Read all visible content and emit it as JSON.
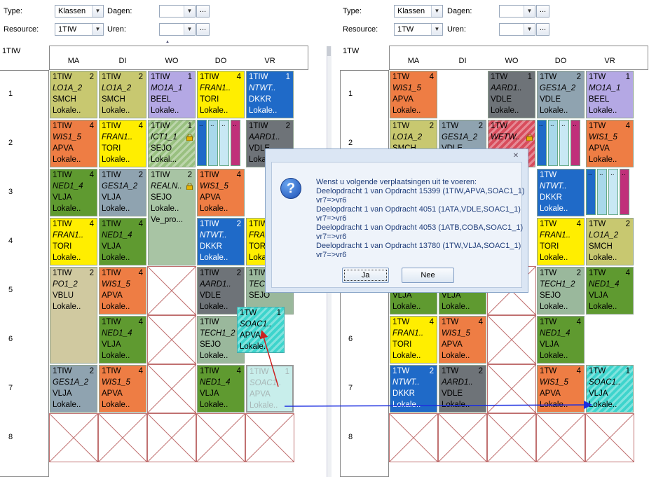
{
  "left": {
    "filters": {
      "type_label": "Type:",
      "type_value": "Klassen",
      "days_label": "Dagen:",
      "resource_label": "Resource:",
      "resource_value": "1TIW",
      "hours_label": "Uren:",
      "dots": "..."
    },
    "class_title": "1TIW",
    "days": [
      "MA",
      "DI",
      "WO",
      "DO",
      "VR"
    ],
    "hours": [
      "1",
      "2",
      "3",
      "4",
      "5",
      "6",
      "7",
      "8"
    ]
  },
  "right": {
    "filters": {
      "type_label": "Type:",
      "type_value": "Klassen",
      "days_label": "Dagen:",
      "resource_label": "Resource:",
      "resource_value": "1TW",
      "hours_label": "Uren:",
      "dots": "..."
    },
    "class_title": "1TW",
    "days": [
      "MA",
      "DI",
      "WO",
      "DO",
      "VR"
    ],
    "hours": [
      "1",
      "2",
      "3",
      "4",
      "5",
      "6",
      "7",
      "8"
    ]
  },
  "left_cells": [
    {
      "class": "1TIW",
      "num": "2",
      "subject": "LO1A_2",
      "teacher": "SMCH",
      "room": "Lokale..",
      "color": "#c8c870"
    },
    {
      "class": "1TIW",
      "num": "2",
      "subject": "LO1A_2",
      "teacher": "SMCH",
      "room": "Lokale..",
      "color": "#c8c870"
    },
    {
      "class": "1TIW",
      "num": "1",
      "subject": "MO1A_1",
      "teacher": "BEEL",
      "room": "Lokale..",
      "color": "#b4a8e4"
    },
    {
      "class": "1TIW",
      "num": "4",
      "subject": "FRAN1..",
      "teacher": "TORI",
      "room": "Lokale..",
      "color": "#ffee00"
    },
    {
      "class": "1TIW",
      "num": "1",
      "subject": "NTWT..",
      "teacher": "DKKR",
      "room": "Lokale..",
      "color": "#1f6ac8"
    },
    {
      "class": "1TIW",
      "num": "4",
      "subject": "WIS1_5",
      "teacher": "APVA",
      "room": "Lokale..",
      "color": "#ee7d44"
    },
    {
      "class": "1TIW",
      "num": "4",
      "subject": "FRAN1..",
      "teacher": "TORI",
      "room": "Lokale..",
      "color": "#ffee00"
    },
    {
      "class": "1TIW",
      "num": "1",
      "subject": "ICT1_1",
      "teacher": "SEJO",
      "room": "Lokal...",
      "color": "#99c080"
    },
    {
      "class": "1TIW",
      "num": "2",
      "subject": "AARD1..",
      "teacher": "VDLE",
      "room": "Lokale..",
      "color": "#6e7378"
    },
    {
      "class": "1TIW",
      "num": "4",
      "subject": "NED1_4",
      "teacher": "VLJA",
      "room": "Lokale..",
      "color": "#5f9a30"
    },
    {
      "class": "1TIW",
      "num": "2",
      "subject": "GES1A_2",
      "teacher": "VLJA",
      "room": "Lokale..",
      "color": "#8fa3b0"
    },
    {
      "class": "1TIW",
      "num": "2",
      "subject": "REALN..",
      "teacher": "SEJO",
      "room": "Lokale..",
      "extra": "Ve_pro...",
      "color": "#a8c4a4"
    },
    {
      "class": "1TIW",
      "num": "4",
      "subject": "WIS1_5",
      "teacher": "APVA",
      "room": "Lokale..",
      "color": "#ee7d44"
    },
    {
      "class": "1TIW",
      "num": "4",
      "subject": "FRAN1..",
      "teacher": "TORI",
      "room": "Lokale..",
      "color": "#ffee00"
    },
    {
      "class": "1TIW",
      "num": "4",
      "subject": "NED1_4",
      "teacher": "VLJA",
      "room": "Lokale..",
      "color": "#5f9a30"
    },
    {
      "class": "1TIW",
      "num": "2",
      "subject": "NTWT..",
      "teacher": "DKKR",
      "room": "Lokale..",
      "color": "#1f6ac8"
    },
    {
      "class": "1TIW",
      "num": "",
      "subject": "FRAN",
      "teacher": "TORI",
      "room": "Lokale..",
      "color": "#ffee00"
    },
    {
      "class": "1TIW",
      "num": "2",
      "subject": "PO1_2",
      "teacher": "VBLU",
      "room": "Lokale..",
      "color": "#d0c9a0"
    },
    {
      "class": "1TIW",
      "num": "4",
      "subject": "WIS1_5",
      "teacher": "APVA",
      "room": "Lokale..",
      "color": "#ee7d44"
    },
    {
      "class": "1TIW",
      "num": "2",
      "subject": "AARD1..",
      "teacher": "VDLE",
      "room": "Lokale..",
      "color": "#6e7378"
    },
    {
      "class": "1TIW",
      "num": "",
      "subject": "TECH",
      "teacher": "SEJO",
      "room": "",
      "color": "#9ab89c"
    },
    {
      "class": "1TIW",
      "num": "4",
      "subject": "NED1_4",
      "teacher": "VLJA",
      "room": "Lokale..",
      "color": "#5f9a30"
    },
    {
      "class": "1TIW",
      "num": "2",
      "subject": "TECH1_2",
      "teacher": "SEJO",
      "room": "Lokale..",
      "color": "#9ab89c"
    },
    {
      "class": "1TW",
      "num": "1",
      "subject": "SOAC1..",
      "teacher": "APVA",
      "room": "Lokale..",
      "color": "#3dd4cc"
    },
    {
      "class": "1TIW",
      "num": "2",
      "subject": "GES1A_2",
      "teacher": "VLJA",
      "room": "Lokale..",
      "color": "#8fa3b0"
    },
    {
      "class": "1TIW",
      "num": "4",
      "subject": "WIS1_5",
      "teacher": "APVA",
      "room": "Lokale..",
      "color": "#ee7d44"
    },
    {
      "class": "1TIW",
      "num": "4",
      "subject": "NED1_4",
      "teacher": "VLJA",
      "room": "Lokale..",
      "color": "#5f9a30"
    },
    {
      "class": "1TIW",
      "num": "1",
      "subject": "SOAC1..",
      "teacher": "APVA",
      "room": "Lokale..",
      "color": "#bfece8"
    }
  ],
  "right_cells": [
    {
      "class": "1TW",
      "num": "4",
      "subject": "WIS1_5",
      "teacher": "APVA",
      "room": "Lokale..",
      "color": "#ee7d44"
    },
    {
      "class": "1TW",
      "num": "1",
      "subject": "AARD1..",
      "teacher": "VDLE",
      "room": "Lokale..",
      "color": "#6e7378"
    },
    {
      "class": "1TW",
      "num": "2",
      "subject": "GES1A_2",
      "teacher": "VDLE",
      "room": "Lokale..",
      "color": "#8fa3b0"
    },
    {
      "class": "1TW",
      "num": "1",
      "subject": "MO1A_1",
      "teacher": "BEEL",
      "room": "Lokale..",
      "color": "#b4a8e4"
    },
    {
      "class": "1TW",
      "num": "2",
      "subject": "LO1A_2",
      "teacher": "SMCH",
      "room": "",
      "color": "#c8c870"
    },
    {
      "class": "1TW",
      "num": "2",
      "subject": "GES1A_2",
      "teacher": "VDLE",
      "room": "",
      "color": "#8fa3b0"
    },
    {
      "class": "1TW",
      "num": "",
      "subject": "WETW..",
      "teacher": "",
      "room": "",
      "color": "#d84c5c"
    },
    {
      "class": "1TW",
      "num": "4",
      "subject": "WIS1_5",
      "teacher": "APVA",
      "room": "Lokale..",
      "color": "#ee7d44"
    },
    {
      "class": "1TW",
      "num": "",
      "subject": "NTWT..",
      "teacher": "DKKR",
      "room": "Lokale..",
      "color": "#1f6ac8"
    },
    {
      "class": "1TW",
      "num": "4",
      "subject": "FRAN1..",
      "teacher": "TORI",
      "room": "Lokale..",
      "color": "#ffee00"
    },
    {
      "class": "1TW",
      "num": "2",
      "subject": "LO1A_2",
      "teacher": "SMCH",
      "room": "Lokale..",
      "color": "#c8c870"
    },
    {
      "class": "1TW",
      "num": "2",
      "subject": "TECH1_2",
      "teacher": "SEJO",
      "room": "Lokale..",
      "color": "#9ab89c"
    },
    {
      "class": "1TW",
      "num": "4",
      "subject": "NED1_4",
      "teacher": "VLJA",
      "room": "Lokale..",
      "color": "#5f9a30"
    },
    {
      "class": "1TW",
      "num": "",
      "subject": "",
      "teacher": "VLJA",
      "room": "Lokale..",
      "color": "#5f9a30"
    },
    {
      "class": "1TW",
      "num": "",
      "subject": "",
      "teacher": "VLJA",
      "room": "Lokale..",
      "color": "#5f9a30"
    },
    {
      "class": "1TW",
      "num": "4",
      "subject": "FRAN1..",
      "teacher": "TORI",
      "room": "Lokale..",
      "color": "#ffee00"
    },
    {
      "class": "1TW",
      "num": "4",
      "subject": "WIS1_5",
      "teacher": "APVA",
      "room": "Lokale..",
      "color": "#ee7d44"
    },
    {
      "class": "1TW",
      "num": "4",
      "subject": "NED1_4",
      "teacher": "VLJA",
      "room": "Lokale..",
      "color": "#5f9a30"
    },
    {
      "class": "1TW",
      "num": "2",
      "subject": "NTWT..",
      "teacher": "DKKR",
      "room": "Lokale..",
      "color": "#1f6ac8"
    },
    {
      "class": "1TW",
      "num": "2",
      "subject": "AARD1..",
      "teacher": "VDLE",
      "room": "Lokale..",
      "color": "#6e7378"
    },
    {
      "class": "1TW",
      "num": "4",
      "subject": "WIS1_5",
      "teacher": "APVA",
      "room": "Lokale..",
      "color": "#ee7d44"
    },
    {
      "class": "1TW",
      "num": "1",
      "subject": "SOAC1..",
      "teacher": "VLJA",
      "room": "Lokale..",
      "color": "#3dd4cc"
    }
  ],
  "dialog": {
    "lines": [
      "Wenst u volgende verplaatsingen uit te voeren:",
      "Deelopdracht 1 van Opdracht 15399 (1TIW,APVA,SOAC1_1)",
      "vr7=>vr6",
      "Deelopdracht 1 van Opdracht 4051 (1ATA,VDLE,SOAC1_1)",
      "vr7=>vr6",
      "Deelopdracht 1 van Opdracht 4053 (1ATB,COBA,SOAC1_1)",
      "vr7=>vr6",
      "Deelopdracht 1 van Opdracht 13780 (1TW,VLJA,SOAC1_1)",
      "vr7=>vr6"
    ],
    "yes_label": "Ja",
    "no_label": "Nee",
    "close_glyph": "✕",
    "question_glyph": "?"
  },
  "colors": {
    "move_arrow": "#cc2222",
    "link_arrow": "#1c2ee0",
    "blocked_x": "#c07070"
  }
}
